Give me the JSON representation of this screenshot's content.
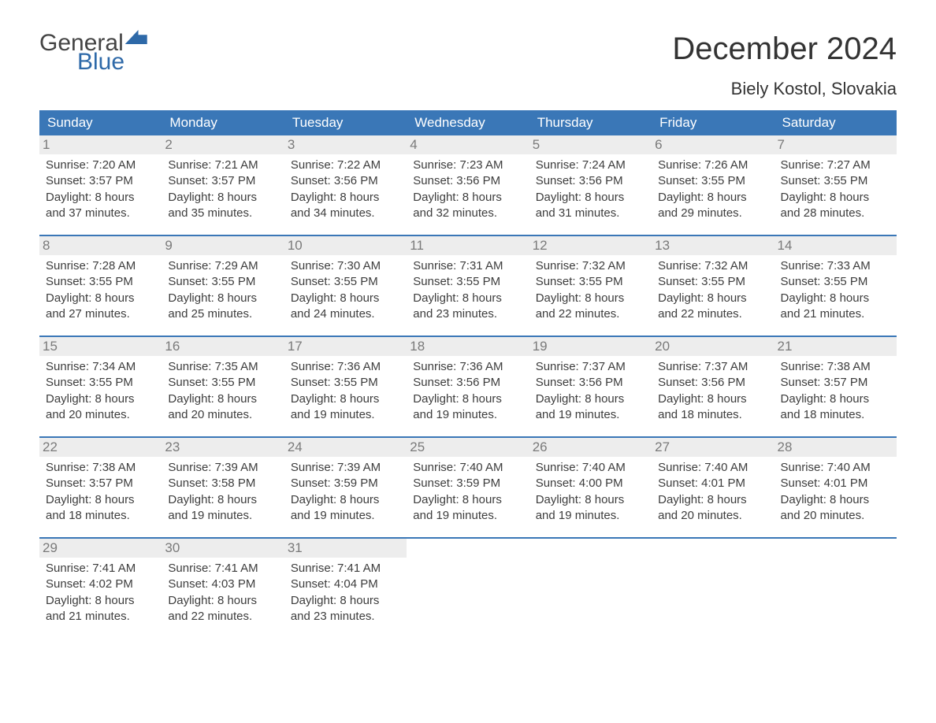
{
  "brand": {
    "word1": "General",
    "word2": "Blue"
  },
  "title": "December 2024",
  "subtitle": "Biely Kostol, Slovakia",
  "day_headers": [
    "Sunday",
    "Monday",
    "Tuesday",
    "Wednesday",
    "Thursday",
    "Friday",
    "Saturday"
  ],
  "colors": {
    "header_bg": "#3a77b7",
    "header_text": "#ffffff",
    "daynum_bg": "#ededed",
    "daynum_text": "#7a7a7a",
    "body_text": "#3d3d3d",
    "rule": "#3a77b7",
    "brand_blue": "#2e69a8"
  },
  "weeks": [
    [
      {
        "n": "1",
        "sr": "Sunrise: 7:20 AM",
        "ss": "Sunset: 3:57 PM",
        "d1": "Daylight: 8 hours",
        "d2": "and 37 minutes."
      },
      {
        "n": "2",
        "sr": "Sunrise: 7:21 AM",
        "ss": "Sunset: 3:57 PM",
        "d1": "Daylight: 8 hours",
        "d2": "and 35 minutes."
      },
      {
        "n": "3",
        "sr": "Sunrise: 7:22 AM",
        "ss": "Sunset: 3:56 PM",
        "d1": "Daylight: 8 hours",
        "d2": "and 34 minutes."
      },
      {
        "n": "4",
        "sr": "Sunrise: 7:23 AM",
        "ss": "Sunset: 3:56 PM",
        "d1": "Daylight: 8 hours",
        "d2": "and 32 minutes."
      },
      {
        "n": "5",
        "sr": "Sunrise: 7:24 AM",
        "ss": "Sunset: 3:56 PM",
        "d1": "Daylight: 8 hours",
        "d2": "and 31 minutes."
      },
      {
        "n": "6",
        "sr": "Sunrise: 7:26 AM",
        "ss": "Sunset: 3:55 PM",
        "d1": "Daylight: 8 hours",
        "d2": "and 29 minutes."
      },
      {
        "n": "7",
        "sr": "Sunrise: 7:27 AM",
        "ss": "Sunset: 3:55 PM",
        "d1": "Daylight: 8 hours",
        "d2": "and 28 minutes."
      }
    ],
    [
      {
        "n": "8",
        "sr": "Sunrise: 7:28 AM",
        "ss": "Sunset: 3:55 PM",
        "d1": "Daylight: 8 hours",
        "d2": "and 27 minutes."
      },
      {
        "n": "9",
        "sr": "Sunrise: 7:29 AM",
        "ss": "Sunset: 3:55 PM",
        "d1": "Daylight: 8 hours",
        "d2": "and 25 minutes."
      },
      {
        "n": "10",
        "sr": "Sunrise: 7:30 AM",
        "ss": "Sunset: 3:55 PM",
        "d1": "Daylight: 8 hours",
        "d2": "and 24 minutes."
      },
      {
        "n": "11",
        "sr": "Sunrise: 7:31 AM",
        "ss": "Sunset: 3:55 PM",
        "d1": "Daylight: 8 hours",
        "d2": "and 23 minutes."
      },
      {
        "n": "12",
        "sr": "Sunrise: 7:32 AM",
        "ss": "Sunset: 3:55 PM",
        "d1": "Daylight: 8 hours",
        "d2": "and 22 minutes."
      },
      {
        "n": "13",
        "sr": "Sunrise: 7:32 AM",
        "ss": "Sunset: 3:55 PM",
        "d1": "Daylight: 8 hours",
        "d2": "and 22 minutes."
      },
      {
        "n": "14",
        "sr": "Sunrise: 7:33 AM",
        "ss": "Sunset: 3:55 PM",
        "d1": "Daylight: 8 hours",
        "d2": "and 21 minutes."
      }
    ],
    [
      {
        "n": "15",
        "sr": "Sunrise: 7:34 AM",
        "ss": "Sunset: 3:55 PM",
        "d1": "Daylight: 8 hours",
        "d2": "and 20 minutes."
      },
      {
        "n": "16",
        "sr": "Sunrise: 7:35 AM",
        "ss": "Sunset: 3:55 PM",
        "d1": "Daylight: 8 hours",
        "d2": "and 20 minutes."
      },
      {
        "n": "17",
        "sr": "Sunrise: 7:36 AM",
        "ss": "Sunset: 3:55 PM",
        "d1": "Daylight: 8 hours",
        "d2": "and 19 minutes."
      },
      {
        "n": "18",
        "sr": "Sunrise: 7:36 AM",
        "ss": "Sunset: 3:56 PM",
        "d1": "Daylight: 8 hours",
        "d2": "and 19 minutes."
      },
      {
        "n": "19",
        "sr": "Sunrise: 7:37 AM",
        "ss": "Sunset: 3:56 PM",
        "d1": "Daylight: 8 hours",
        "d2": "and 19 minutes."
      },
      {
        "n": "20",
        "sr": "Sunrise: 7:37 AM",
        "ss": "Sunset: 3:56 PM",
        "d1": "Daylight: 8 hours",
        "d2": "and 18 minutes."
      },
      {
        "n": "21",
        "sr": "Sunrise: 7:38 AM",
        "ss": "Sunset: 3:57 PM",
        "d1": "Daylight: 8 hours",
        "d2": "and 18 minutes."
      }
    ],
    [
      {
        "n": "22",
        "sr": "Sunrise: 7:38 AM",
        "ss": "Sunset: 3:57 PM",
        "d1": "Daylight: 8 hours",
        "d2": "and 18 minutes."
      },
      {
        "n": "23",
        "sr": "Sunrise: 7:39 AM",
        "ss": "Sunset: 3:58 PM",
        "d1": "Daylight: 8 hours",
        "d2": "and 19 minutes."
      },
      {
        "n": "24",
        "sr": "Sunrise: 7:39 AM",
        "ss": "Sunset: 3:59 PM",
        "d1": "Daylight: 8 hours",
        "d2": "and 19 minutes."
      },
      {
        "n": "25",
        "sr": "Sunrise: 7:40 AM",
        "ss": "Sunset: 3:59 PM",
        "d1": "Daylight: 8 hours",
        "d2": "and 19 minutes."
      },
      {
        "n": "26",
        "sr": "Sunrise: 7:40 AM",
        "ss": "Sunset: 4:00 PM",
        "d1": "Daylight: 8 hours",
        "d2": "and 19 minutes."
      },
      {
        "n": "27",
        "sr": "Sunrise: 7:40 AM",
        "ss": "Sunset: 4:01 PM",
        "d1": "Daylight: 8 hours",
        "d2": "and 20 minutes."
      },
      {
        "n": "28",
        "sr": "Sunrise: 7:40 AM",
        "ss": "Sunset: 4:01 PM",
        "d1": "Daylight: 8 hours",
        "d2": "and 20 minutes."
      }
    ],
    [
      {
        "n": "29",
        "sr": "Sunrise: 7:41 AM",
        "ss": "Sunset: 4:02 PM",
        "d1": "Daylight: 8 hours",
        "d2": "and 21 minutes."
      },
      {
        "n": "30",
        "sr": "Sunrise: 7:41 AM",
        "ss": "Sunset: 4:03 PM",
        "d1": "Daylight: 8 hours",
        "d2": "and 22 minutes."
      },
      {
        "n": "31",
        "sr": "Sunrise: 7:41 AM",
        "ss": "Sunset: 4:04 PM",
        "d1": "Daylight: 8 hours",
        "d2": "and 23 minutes."
      },
      {
        "empty": true
      },
      {
        "empty": true
      },
      {
        "empty": true
      },
      {
        "empty": true
      }
    ]
  ]
}
